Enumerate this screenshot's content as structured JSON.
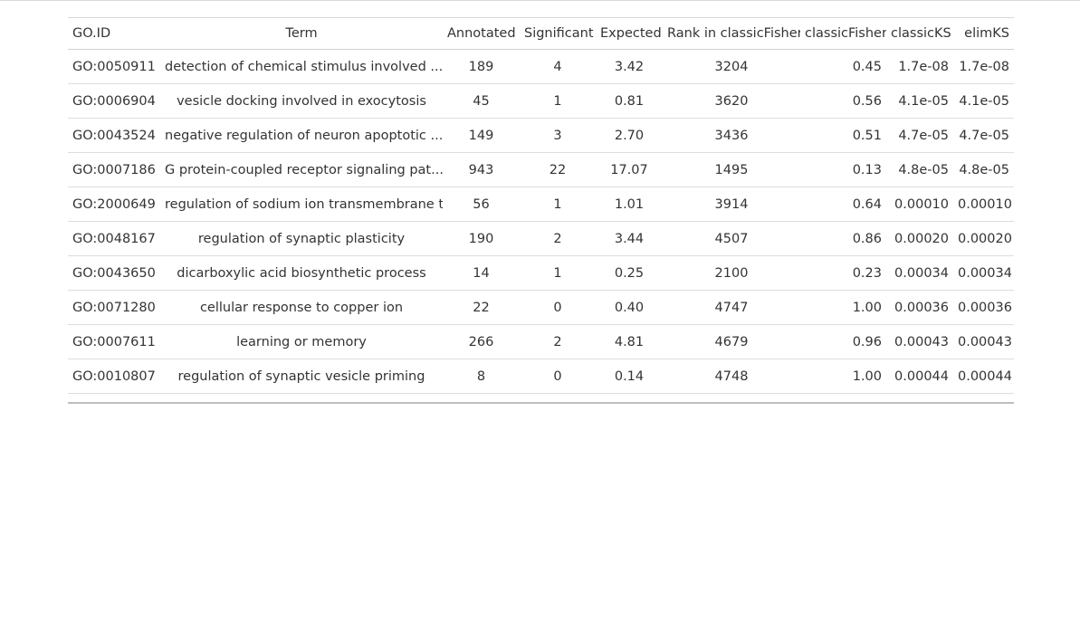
{
  "table": {
    "columns": [
      {
        "key": "go_id",
        "label": "GO.ID",
        "align": "left"
      },
      {
        "key": "term",
        "label": "Term",
        "align": "center"
      },
      {
        "key": "annotated",
        "label": "Annotated",
        "align": "center"
      },
      {
        "key": "significant",
        "label": "Significant",
        "align": "center"
      },
      {
        "key": "expected",
        "label": "Expected",
        "align": "center"
      },
      {
        "key": "rank",
        "label": "Rank in classicFisher",
        "align": "center"
      },
      {
        "key": "classic_fisher",
        "label": "classicFisher",
        "align": "right"
      },
      {
        "key": "classic_ks",
        "label": "classicKS",
        "align": "right"
      },
      {
        "key": "elim_ks",
        "label": "elimKS",
        "align": "right"
      }
    ],
    "rows": [
      {
        "go_id": "GO:0050911",
        "term": "detection of chemical stimulus involved ...",
        "annotated": "189",
        "significant": "4",
        "expected": "3.42",
        "rank": "3204",
        "classic_fisher": "0.45",
        "classic_ks": "1.7e-08",
        "elim_ks": "1.7e-08"
      },
      {
        "go_id": "GO:0006904",
        "term": "vesicle docking involved in exocytosis",
        "annotated": "45",
        "significant": "1",
        "expected": "0.81",
        "rank": "3620",
        "classic_fisher": "0.56",
        "classic_ks": "4.1e-05",
        "elim_ks": "4.1e-05"
      },
      {
        "go_id": "GO:0043524",
        "term": "negative regulation of neuron apoptotic ...",
        "annotated": "149",
        "significant": "3",
        "expected": "2.70",
        "rank": "3436",
        "classic_fisher": "0.51",
        "classic_ks": "4.7e-05",
        "elim_ks": "4.7e-05"
      },
      {
        "go_id": "GO:0007186",
        "term": "G protein-coupled receptor signaling pat...",
        "annotated": "943",
        "significant": "22",
        "expected": "17.07",
        "rank": "1495",
        "classic_fisher": "0.13",
        "classic_ks": "4.8e-05",
        "elim_ks": "4.8e-05"
      },
      {
        "go_id": "GO:2000649",
        "term": "regulation of sodium ion transmembrane t...",
        "annotated": "56",
        "significant": "1",
        "expected": "1.01",
        "rank": "3914",
        "classic_fisher": "0.64",
        "classic_ks": "0.00010",
        "elim_ks": "0.00010"
      },
      {
        "go_id": "GO:0048167",
        "term": "regulation of synaptic plasticity",
        "annotated": "190",
        "significant": "2",
        "expected": "3.44",
        "rank": "4507",
        "classic_fisher": "0.86",
        "classic_ks": "0.00020",
        "elim_ks": "0.00020"
      },
      {
        "go_id": "GO:0043650",
        "term": "dicarboxylic acid biosynthetic process",
        "annotated": "14",
        "significant": "1",
        "expected": "0.25",
        "rank": "2100",
        "classic_fisher": "0.23",
        "classic_ks": "0.00034",
        "elim_ks": "0.00034"
      },
      {
        "go_id": "GO:0071280",
        "term": "cellular response to copper ion",
        "annotated": "22",
        "significant": "0",
        "expected": "0.40",
        "rank": "4747",
        "classic_fisher": "1.00",
        "classic_ks": "0.00036",
        "elim_ks": "0.00036"
      },
      {
        "go_id": "GO:0007611",
        "term": "learning or memory",
        "annotated": "266",
        "significant": "2",
        "expected": "4.81",
        "rank": "4679",
        "classic_fisher": "0.96",
        "classic_ks": "0.00043",
        "elim_ks": "0.00043"
      },
      {
        "go_id": "GO:0010807",
        "term": "regulation of synaptic vesicle priming",
        "annotated": "8",
        "significant": "0",
        "expected": "0.14",
        "rank": "4748",
        "classic_fisher": "1.00",
        "classic_ks": "0.00044",
        "elim_ks": "0.00044"
      }
    ]
  }
}
